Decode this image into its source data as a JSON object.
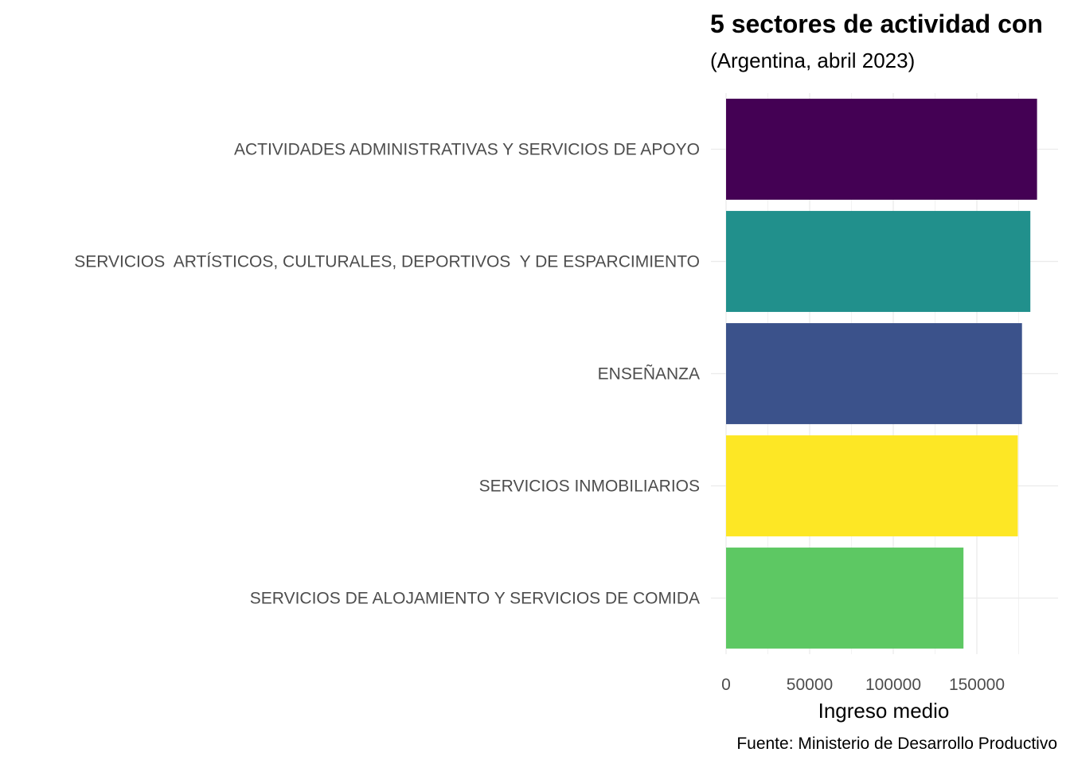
{
  "chart_data": {
    "type": "bar",
    "orientation": "horizontal",
    "title": "5 sectores de actividad con",
    "subtitle": "(Argentina, abril 2023)",
    "xlabel": "Ingreso medio",
    "ylabel": "",
    "caption": "Fuente: Ministerio de Desarrollo Productivo",
    "xlim": [
      0,
      195000
    ],
    "xticks": [
      0,
      50000,
      100000,
      150000
    ],
    "xtick_labels": [
      "0",
      "50000",
      "100000",
      "150000"
    ],
    "grid": true,
    "legend": "none",
    "categories": [
      "ACTIVIDADES ADMINISTRATIVAS Y SERVICIOS DE APOYO",
      "SERVICIOS  ARTÍSTICOS, CULTURALES, DEPORTIVOS  Y DE ESPARCIMIENTO",
      "ENSEÑANZA",
      "SERVICIOS INMOBILIARIOS",
      "SERVICIOS DE ALOJAMIENTO Y SERVICIOS DE COMIDA"
    ],
    "values": [
      186000,
      182000,
      177000,
      174500,
      142000
    ],
    "colors": [
      "#440154",
      "#21908C",
      "#3B528B",
      "#FDE725",
      "#5DC863"
    ]
  }
}
